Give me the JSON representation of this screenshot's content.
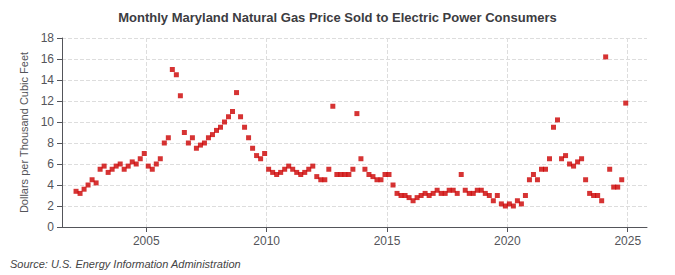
{
  "chart_data": {
    "type": "scatter",
    "title": "Monthly Maryland Natural Gas Price Sold to Electric Power Consumers",
    "ylabel": "Dollars per Thousand Cubic Feet",
    "annotation": "Source: U.S. Energy Information Administration",
    "color": "#cc0000",
    "marker": "square",
    "grid": true,
    "xlim": [
      2001.5,
      2025.8
    ],
    "xticks": [
      2005,
      2010,
      2015,
      2020,
      2025
    ],
    "ylim": [
      0,
      18
    ],
    "yticks": [
      0,
      2,
      4,
      6,
      8,
      10,
      12,
      14,
      16,
      18
    ],
    "x": [
      2002.083,
      2002.25,
      2002.417,
      2002.583,
      2002.75,
      2002.917,
      2003.083,
      2003.25,
      2003.417,
      2003.583,
      2003.75,
      2003.917,
      2004.083,
      2004.25,
      2004.417,
      2004.583,
      2004.75,
      2004.917,
      2005.083,
      2005.25,
      2005.417,
      2005.583,
      2005.75,
      2005.917,
      2006.083,
      2006.25,
      2006.417,
      2006.583,
      2006.75,
      2006.917,
      2007.083,
      2007.25,
      2007.417,
      2007.583,
      2007.75,
      2007.917,
      2008.083,
      2008.25,
      2008.417,
      2008.583,
      2008.75,
      2008.917,
      2009.083,
      2009.25,
      2009.417,
      2009.583,
      2009.75,
      2009.917,
      2010.083,
      2010.25,
      2010.417,
      2010.583,
      2010.75,
      2010.917,
      2011.083,
      2011.25,
      2011.417,
      2011.583,
      2011.75,
      2011.917,
      2012.083,
      2012.25,
      2012.417,
      2012.583,
      2012.75,
      2012.917,
      2013.083,
      2013.25,
      2013.417,
      2013.583,
      2013.75,
      2013.917,
      2014.083,
      2014.25,
      2014.417,
      2014.583,
      2014.75,
      2014.917,
      2015.083,
      2015.25,
      2015.417,
      2015.583,
      2015.75,
      2015.917,
      2016.083,
      2016.25,
      2016.417,
      2016.583,
      2016.75,
      2016.917,
      2017.083,
      2017.25,
      2017.417,
      2017.583,
      2017.75,
      2017.917,
      2018.083,
      2018.25,
      2018.417,
      2018.583,
      2018.75,
      2018.917,
      2019.083,
      2019.25,
      2019.417,
      2019.583,
      2019.75,
      2019.917,
      2020.083,
      2020.25,
      2020.417,
      2020.583,
      2020.75,
      2020.917,
      2021.083,
      2021.25,
      2021.417,
      2021.583,
      2021.75,
      2021.917,
      2022.083,
      2022.25,
      2022.417,
      2022.583,
      2022.75,
      2022.917,
      2023.083,
      2023.25,
      2023.417,
      2023.583,
      2023.75,
      2023.917,
      2024.083,
      2024.25,
      2024.417,
      2024.583,
      2024.75,
      2024.917
    ],
    "values": [
      3.4,
      3.2,
      3.6,
      4.0,
      4.5,
      4.2,
      5.5,
      5.8,
      5.2,
      5.5,
      5.8,
      6.0,
      5.5,
      5.8,
      6.2,
      6.0,
      6.5,
      7.0,
      5.8,
      5.5,
      6.0,
      6.5,
      8.0,
      8.5,
      15.0,
      14.5,
      12.5,
      9.0,
      8.0,
      8.5,
      7.5,
      7.8,
      8.0,
      8.5,
      8.8,
      9.2,
      9.5,
      10.0,
      10.5,
      11.0,
      12.8,
      10.5,
      9.5,
      8.5,
      7.5,
      6.8,
      6.5,
      7.0,
      5.5,
      5.2,
      5.0,
      5.2,
      5.5,
      5.8,
      5.5,
      5.2,
      5.0,
      5.2,
      5.5,
      5.8,
      4.8,
      4.5,
      4.5,
      5.5,
      11.5,
      5.0,
      5.0,
      5.0,
      5.0,
      5.5,
      10.8,
      6.5,
      5.5,
      5.0,
      4.8,
      4.5,
      4.5,
      5.0,
      5.0,
      4.0,
      3.2,
      3.0,
      3.0,
      2.8,
      2.5,
      2.8,
      3.0,
      3.2,
      3.0,
      3.2,
      3.5,
      3.2,
      3.2,
      3.5,
      3.5,
      3.2,
      5.0,
      3.5,
      3.2,
      3.2,
      3.5,
      3.5,
      3.2,
      3.0,
      2.5,
      3.0,
      2.2,
      2.0,
      2.2,
      2.0,
      2.5,
      2.2,
      3.0,
      4.5,
      5.0,
      4.5,
      5.5,
      5.5,
      6.5,
      9.5,
      10.2,
      6.5,
      6.8,
      6.0,
      5.8,
      6.2,
      6.5,
      4.5,
      3.2,
      3.0,
      3.0,
      2.5,
      16.2,
      5.5,
      3.8,
      3.8,
      4.5,
      11.8
    ]
  }
}
